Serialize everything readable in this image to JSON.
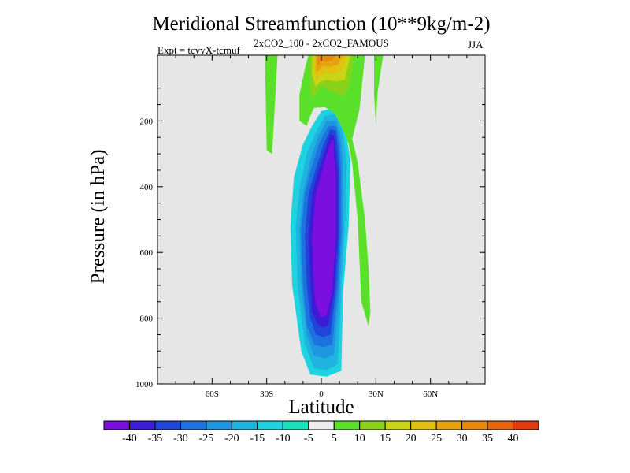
{
  "colors": {
    "background": "#e6e6e6",
    "frame": "#000000",
    "palette": [
      "#7a0fe0",
      "#3d1cd8",
      "#1f46d8",
      "#1e72e0",
      "#1e96e0",
      "#1fb4e0",
      "#1ed2e0",
      "#1ae0bb",
      "#ececec",
      "#5ae02a",
      "#8ad21a",
      "#c8d414",
      "#e0c010",
      "#e6a20e",
      "#e6880e",
      "#e6640e",
      "#e23c0e"
    ]
  },
  "chart_data": {
    "type": "contour",
    "title": "Meridional Streamfunction (10**9kg/m-2)",
    "subtitle": "2xCO2_100 - 2xCO2_FAMOUS",
    "experiment_label": "Expt = tcvvX-tcmuf",
    "season": "JJA",
    "xlabel": "Latitude",
    "ylabel": "Pressure (in hPa)",
    "xlim": [
      -90,
      90
    ],
    "ylim": [
      1000,
      0
    ],
    "y_inverted": true,
    "x_ticks": [
      {
        "value": -60,
        "label": "60S"
      },
      {
        "value": -30,
        "label": "30S"
      },
      {
        "value": 0,
        "label": "0"
      },
      {
        "value": 30,
        "label": "30N"
      },
      {
        "value": 60,
        "label": "60N"
      }
    ],
    "y_ticks": [
      {
        "value": 200,
        "label": "200"
      },
      {
        "value": 400,
        "label": "400"
      },
      {
        "value": 600,
        "label": "600"
      },
      {
        "value": 800,
        "label": "800"
      },
      {
        "value": 1000,
        "label": "1000"
      }
    ],
    "colorbar": {
      "boundaries": [
        -40,
        -35,
        -30,
        -25,
        -20,
        -15,
        -10,
        -5,
        5,
        10,
        15,
        20,
        25,
        30,
        35,
        40
      ],
      "labels": [
        "-40",
        "-35",
        "-30",
        "-25",
        "-20",
        "-15",
        "-10",
        "-5",
        "5",
        "10",
        "15",
        "20",
        "25",
        "30",
        "35",
        "40"
      ]
    },
    "contour_regions": [
      {
        "level": -10,
        "points": [
          [
            -15,
            370
          ],
          [
            -10,
            270
          ],
          [
            -5,
            215
          ],
          [
            0,
            170
          ],
          [
            7,
            160
          ],
          [
            13,
            215
          ],
          [
            16,
            320
          ],
          [
            15,
            520
          ],
          [
            12,
            720
          ],
          [
            11,
            960
          ],
          [
            3,
            978
          ],
          [
            -6,
            972
          ],
          [
            -11,
            900
          ],
          [
            -16,
            700
          ],
          [
            -17,
            520
          ]
        ]
      },
      {
        "level": -15,
        "points": [
          [
            -12,
            410
          ],
          [
            -8,
            300
          ],
          [
            -3,
            235
          ],
          [
            2,
            185
          ],
          [
            8,
            178
          ],
          [
            12,
            235
          ],
          [
            14,
            330
          ],
          [
            13,
            520
          ],
          [
            11,
            720
          ],
          [
            9,
            940
          ],
          [
            3,
            958
          ],
          [
            -4,
            952
          ],
          [
            -9,
            880
          ],
          [
            -13,
            700
          ],
          [
            -14,
            520
          ]
        ]
      },
      {
        "level": -20,
        "points": [
          [
            -10,
            420
          ],
          [
            -6,
            320
          ],
          [
            -2,
            250
          ],
          [
            3,
            200
          ],
          [
            8,
            198
          ],
          [
            11,
            250
          ],
          [
            12,
            340
          ],
          [
            12,
            530
          ],
          [
            10,
            720
          ],
          [
            7,
            910
          ],
          [
            2,
            922
          ],
          [
            -4,
            914
          ],
          [
            -8,
            850
          ],
          [
            -11,
            700
          ],
          [
            -12,
            530
          ]
        ]
      },
      {
        "level": -25,
        "points": [
          [
            -9,
            420
          ],
          [
            -5,
            335
          ],
          [
            -1,
            265
          ],
          [
            4,
            215
          ],
          [
            8,
            215
          ],
          [
            10,
            265
          ],
          [
            11,
            345
          ],
          [
            11,
            540
          ],
          [
            9,
            720
          ],
          [
            6,
            880
          ],
          [
            1,
            888
          ],
          [
            -4,
            880
          ],
          [
            -8,
            820
          ],
          [
            -10,
            700
          ],
          [
            -11,
            540
          ]
        ]
      },
      {
        "level": -30,
        "points": [
          [
            -7,
            420
          ],
          [
            -3,
            345
          ],
          [
            1,
            275
          ],
          [
            5,
            225
          ],
          [
            8,
            230
          ],
          [
            9,
            280
          ],
          [
            10,
            350
          ],
          [
            10,
            545
          ],
          [
            8,
            720
          ],
          [
            5,
            850
          ],
          [
            1,
            858
          ],
          [
            -3,
            850
          ],
          [
            -6,
            800
          ],
          [
            -8,
            700
          ],
          [
            -9,
            545
          ]
        ]
      },
      {
        "level": -35,
        "points": [
          [
            -5,
            420
          ],
          [
            -2,
            355
          ],
          [
            2,
            290
          ],
          [
            5,
            240
          ],
          [
            7,
            245
          ],
          [
            8,
            295
          ],
          [
            9,
            355
          ],
          [
            9,
            550
          ],
          [
            7,
            720
          ],
          [
            4,
            820
          ],
          [
            1,
            828
          ],
          [
            -2,
            820
          ],
          [
            -5,
            780
          ],
          [
            -6,
            700
          ],
          [
            -7,
            550
          ]
        ]
      },
      {
        "level": -40,
        "points": [
          [
            -3,
            420
          ],
          [
            0,
            365
          ],
          [
            3,
            300
          ],
          [
            6,
            255
          ],
          [
            7,
            262
          ],
          [
            7,
            305
          ],
          [
            8,
            360
          ],
          [
            8,
            555
          ],
          [
            6,
            720
          ],
          [
            3,
            790
          ],
          [
            1,
            798
          ],
          [
            -1,
            790
          ],
          [
            -3,
            760
          ],
          [
            -4,
            700
          ],
          [
            -5,
            555
          ]
        ]
      },
      {
        "level": 5,
        "points": [
          [
            -31,
            0
          ],
          [
            -24,
            0
          ],
          [
            -27,
            300
          ],
          [
            -30,
            290
          ]
        ]
      },
      {
        "level": 5,
        "points": [
          [
            -7,
            0
          ],
          [
            24,
            0
          ],
          [
            21,
            165
          ],
          [
            17,
            255
          ],
          [
            20,
            325
          ],
          [
            24,
            500
          ],
          [
            26,
            650
          ],
          [
            27,
            780
          ],
          [
            26,
            825
          ],
          [
            22,
            750
          ],
          [
            20,
            500
          ],
          [
            17,
            330
          ],
          [
            15,
            270
          ],
          [
            11,
            215
          ],
          [
            7,
            175
          ],
          [
            2,
            158
          ],
          [
            -4,
            160
          ],
          [
            -6,
            185
          ],
          [
            -8,
            215
          ],
          [
            -12,
            200
          ],
          [
            -12,
            120
          ],
          [
            -9,
            40
          ]
        ]
      },
      {
        "level": 5,
        "points": [
          [
            29,
            0
          ],
          [
            34,
            0
          ],
          [
            31,
            110
          ],
          [
            30,
            210
          ],
          [
            29,
            120
          ]
        ]
      },
      {
        "level": 10,
        "points": [
          [
            -6,
            0
          ],
          [
            18,
            0
          ],
          [
            15,
            100
          ],
          [
            12,
            125
          ],
          [
            5,
            110
          ],
          [
            0,
            90
          ],
          [
            -2,
            110
          ],
          [
            -5,
            130
          ],
          [
            -6,
            100
          ]
        ]
      },
      {
        "level": 15,
        "points": [
          [
            -5,
            0
          ],
          [
            16,
            0
          ],
          [
            13,
            75
          ],
          [
            8,
            80
          ],
          [
            3,
            75
          ],
          [
            -1,
            82
          ],
          [
            -3,
            95
          ],
          [
            -5,
            60
          ]
        ]
      },
      {
        "level": 20,
        "points": [
          [
            -4,
            0
          ],
          [
            14,
            0
          ],
          [
            11,
            48
          ],
          [
            7,
            55
          ],
          [
            2,
            52
          ],
          [
            -1,
            62
          ],
          [
            -3,
            75
          ],
          [
            -4,
            40
          ]
        ]
      },
      {
        "level": 25,
        "points": [
          [
            -3,
            0
          ],
          [
            12,
            0
          ],
          [
            9,
            30
          ],
          [
            5,
            35
          ],
          [
            1,
            33
          ],
          [
            -1,
            45
          ],
          [
            -3,
            52
          ],
          [
            -3,
            20
          ]
        ]
      },
      {
        "level": 30,
        "points": [
          [
            -2,
            0
          ],
          [
            8,
            0
          ],
          [
            6,
            15
          ],
          [
            2,
            20
          ],
          [
            0,
            18
          ],
          [
            -1,
            28
          ],
          [
            -2,
            32
          ]
        ]
      }
    ]
  }
}
